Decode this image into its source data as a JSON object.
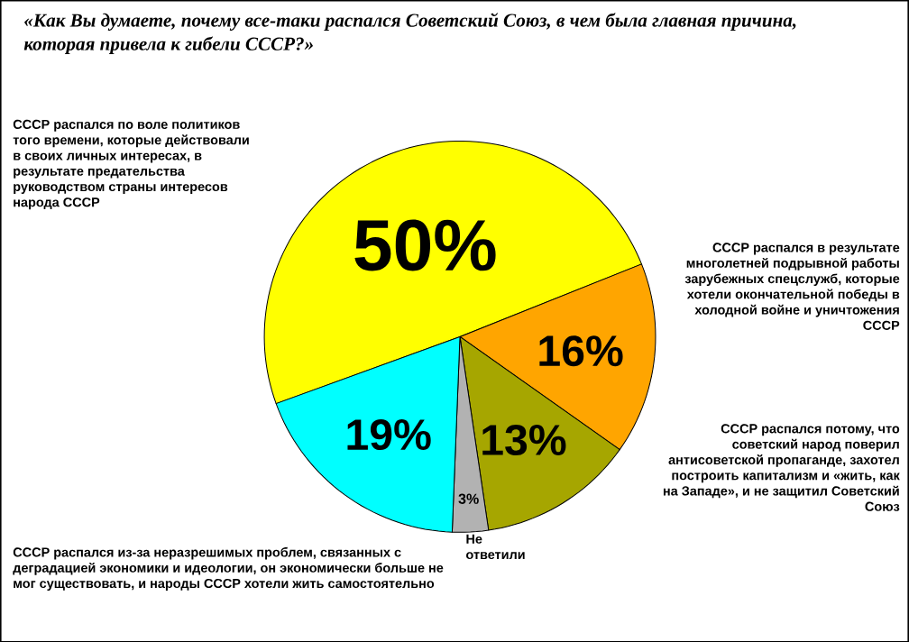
{
  "chart_data": {
    "type": "pie",
    "title": "«Как Вы думаете, почему все-таки распался Советский Союз, в чем была главная причина, которая привела к гибели СССР?»",
    "categories": [
      "СССР распался по воле политиков того времени, которые действовали в своих личных интересах, в результате предательства руководством страны интересов народа СССР",
      "СССР распался в результате многолетней подрывной работы зарубежных спецслужб, которые хотели окончательной победы в холодной войне и уничтожения СССР",
      "СССР распался потому, что советский народ поверил антисоветской пропаганде, захотел построить капитализм и «жить, как на Западе», и не защитил Советский Союз",
      "Не ответили",
      "СССР распался из-за неразрешимых проблем, связанных с деградацией экономики и идеологии, он экономически больше не мог существовать, и народы СССР хотели жить самостоятельно"
    ],
    "values": [
      50,
      16,
      13,
      3,
      19
    ],
    "colors": [
      "#ffff00",
      "#ffa500",
      "#a6a600",
      "#b2b2b2",
      "#00ffff"
    ],
    "value_labels": [
      "50%",
      "16%",
      "13%",
      "3%",
      "19%"
    ]
  }
}
